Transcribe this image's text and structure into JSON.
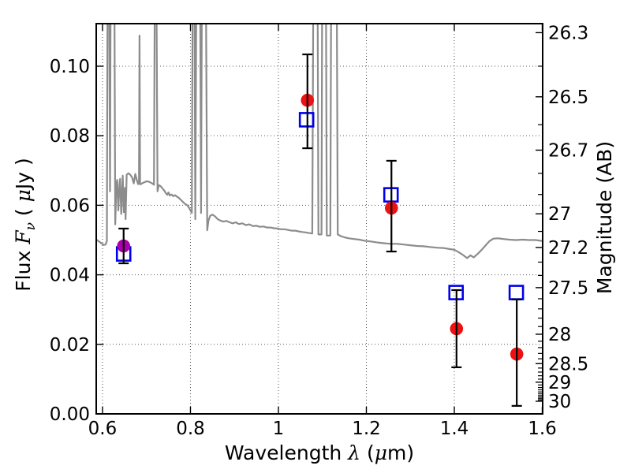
{
  "chart_data": {
    "type": "line+scatter-errorbar",
    "title": "",
    "xlabel": "Wavelength λ (μm)",
    "ylabel": "Flux Fν ( μJy )",
    "y2label": "Magnitude (AB)",
    "xlabel_rich": [
      {
        "t": "Wavelength  "
      },
      {
        "t": "λ",
        "i": 1
      },
      {
        "t": " ("
      },
      {
        "t": "μ",
        "i": 1
      },
      {
        "t": "m)"
      }
    ],
    "ylabel_rich": [
      {
        "t": "Flux  "
      },
      {
        "t": "F",
        "i": 1
      },
      {
        "t": "ν",
        "i": 1,
        "sub": 1
      },
      {
        "t": "  ( "
      },
      {
        "t": "μ",
        "i": 1
      },
      {
        "t": "Jy )"
      }
    ],
    "xlim": [
      0.5857,
      1.6009
    ],
    "ylim": [
      0,
      0.11224
    ],
    "grid": true,
    "legend": "none",
    "x_ticks": {
      "values": [
        0.6,
        0.8,
        1.0,
        1.2,
        1.4,
        1.6
      ],
      "labels": [
        "0.6",
        "0.8",
        "1",
        "1.2",
        "1.4",
        "1.6"
      ]
    },
    "y_ticks": {
      "values": [
        0,
        0.02,
        0.04,
        0.06,
        0.08,
        0.1
      ],
      "labels": [
        "0.00",
        "0.02",
        "0.04",
        "0.06",
        "0.08",
        "0.10"
      ]
    },
    "y2_ticks": {
      "mag_values": [
        26.3,
        26.5,
        26.7,
        27,
        27.2,
        27.5,
        28,
        28.5,
        29,
        30
      ],
      "labels": [
        "26.3",
        "26.5",
        "26.7",
        "27",
        "27.2",
        "27.5",
        "28",
        "28.5",
        "29",
        "30"
      ],
      "minor_step": 0.1,
      "minor_range": [
        26.3,
        30.0
      ],
      "ab_zeropoint_ujy": 23.9
    },
    "colors": {
      "spectrum": "#8c8c8c",
      "observed_point": "#ee1111",
      "observed_point_alt": "#aa00aa",
      "model_square": "#0000ee",
      "errorbar": "#000000",
      "grid": "#555555",
      "frame": "#000000"
    },
    "series": [
      {
        "name": "model-spectrum",
        "type": "line",
        "color": "#8c8c8c",
        "width": 2.2,
        "points": [
          [
            0.586,
            0.0501
          ],
          [
            0.592,
            0.0496
          ],
          [
            0.598,
            0.049
          ],
          [
            0.603,
            0.0486
          ],
          [
            0.607,
            0.0487
          ],
          [
            0.61,
            0.0497
          ],
          [
            0.6115,
            0.125
          ],
          [
            0.615,
            0.125
          ],
          [
            0.617,
            0.064
          ],
          [
            0.6185,
            0.125
          ],
          [
            0.627,
            0.125
          ],
          [
            0.629,
            0.0545
          ],
          [
            0.6315,
            0.066
          ],
          [
            0.6335,
            0.0673
          ],
          [
            0.636,
            0.0585
          ],
          [
            0.6385,
            0.0655
          ],
          [
            0.64,
            0.0676
          ],
          [
            0.6425,
            0.0575
          ],
          [
            0.646,
            0.0685
          ],
          [
            0.6485,
            0.058
          ],
          [
            0.651,
            0.065
          ],
          [
            0.6525,
            0.056
          ],
          [
            0.655,
            0.0688
          ],
          [
            0.659,
            0.0692
          ],
          [
            0.663,
            0.0688
          ],
          [
            0.667,
            0.0681
          ],
          [
            0.671,
            0.0663
          ],
          [
            0.6745,
            0.069
          ],
          [
            0.678,
            0.0672
          ],
          [
            0.681,
            0.0661
          ],
          [
            0.683,
            0.0665
          ],
          [
            0.6842,
            0.1088
          ],
          [
            0.6855,
            0.066
          ],
          [
            0.69,
            0.0663
          ],
          [
            0.695,
            0.0666
          ],
          [
            0.7,
            0.0669
          ],
          [
            0.705,
            0.0668
          ],
          [
            0.71,
            0.0665
          ],
          [
            0.714,
            0.0662
          ],
          [
            0.717,
            0.0659
          ],
          [
            0.719,
            0.125
          ],
          [
            0.7225,
            0.125
          ],
          [
            0.725,
            0.064
          ],
          [
            0.728,
            0.0658
          ],
          [
            0.732,
            0.0655
          ],
          [
            0.736,
            0.0649
          ],
          [
            0.74,
            0.0643
          ],
          [
            0.744,
            0.0635
          ],
          [
            0.7475,
            0.063
          ],
          [
            0.75,
            0.0637
          ],
          [
            0.753,
            0.0628
          ],
          [
            0.757,
            0.0631
          ],
          [
            0.761,
            0.0626
          ],
          [
            0.765,
            0.0629
          ],
          [
            0.769,
            0.0625
          ],
          [
            0.773,
            0.0622
          ],
          [
            0.777,
            0.0617
          ],
          [
            0.781,
            0.0612
          ],
          [
            0.785,
            0.0607
          ],
          [
            0.789,
            0.0603
          ],
          [
            0.793,
            0.06
          ],
          [
            0.797,
            0.0592
          ],
          [
            0.8,
            0.0585
          ],
          [
            0.803,
            0.0578
          ],
          [
            0.805,
            0.125
          ],
          [
            0.809,
            0.125
          ],
          [
            0.811,
            0.056
          ],
          [
            0.8135,
            0.125
          ],
          [
            0.822,
            0.125
          ],
          [
            0.824,
            0.0578
          ],
          [
            0.826,
            0.125
          ],
          [
            0.835,
            0.125
          ],
          [
            0.838,
            0.0528
          ],
          [
            0.841,
            0.0556
          ],
          [
            0.845,
            0.057
          ],
          [
            0.85,
            0.0573
          ],
          [
            0.856,
            0.0568
          ],
          [
            0.862,
            0.056
          ],
          [
            0.868,
            0.0556
          ],
          [
            0.875,
            0.0553
          ],
          [
            0.882,
            0.0555
          ],
          [
            0.889,
            0.0551
          ],
          [
            0.896,
            0.0548
          ],
          [
            0.903,
            0.0551
          ],
          [
            0.91,
            0.0546
          ],
          [
            0.918,
            0.0548
          ],
          [
            0.926,
            0.0543
          ],
          [
            0.934,
            0.0545
          ],
          [
            0.942,
            0.054
          ],
          [
            0.95,
            0.0541
          ],
          [
            0.958,
            0.0538
          ],
          [
            0.966,
            0.0539
          ],
          [
            0.974,
            0.0536
          ],
          [
            0.982,
            0.0536
          ],
          [
            0.99,
            0.0534
          ],
          [
            0.998,
            0.0533
          ],
          [
            1.006,
            0.0531
          ],
          [
            1.014,
            0.0531
          ],
          [
            1.022,
            0.0529
          ],
          [
            1.03,
            0.0527
          ],
          [
            1.038,
            0.0527
          ],
          [
            1.046,
            0.0525
          ],
          [
            1.054,
            0.0523
          ],
          [
            1.062,
            0.0522
          ],
          [
            1.07,
            0.052
          ],
          [
            1.077,
            0.0519
          ],
          [
            1.0795,
            0.125
          ],
          [
            1.089,
            0.125
          ],
          [
            1.091,
            0.0516
          ],
          [
            1.098,
            0.0516
          ],
          [
            1.0995,
            0.125
          ],
          [
            1.108,
            0.125
          ],
          [
            1.11,
            0.0513
          ],
          [
            1.118,
            0.0513
          ],
          [
            1.12,
            0.125
          ],
          [
            1.1325,
            0.125
          ],
          [
            1.135,
            0.0516
          ],
          [
            1.142,
            0.0511
          ],
          [
            1.15,
            0.0508
          ],
          [
            1.16,
            0.0505
          ],
          [
            1.172,
            0.0503
          ],
          [
            1.184,
            0.0501
          ],
          [
            1.196,
            0.0498
          ],
          [
            1.21,
            0.0496
          ],
          [
            1.225,
            0.0493
          ],
          [
            1.24,
            0.0491
          ],
          [
            1.255,
            0.0489
          ],
          [
            1.27,
            0.0489
          ],
          [
            1.285,
            0.0487
          ],
          [
            1.3,
            0.0485
          ],
          [
            1.315,
            0.0483
          ],
          [
            1.33,
            0.0482
          ],
          [
            1.345,
            0.048
          ],
          [
            1.36,
            0.0478
          ],
          [
            1.375,
            0.0477
          ],
          [
            1.39,
            0.0474
          ],
          [
            1.4,
            0.0472
          ],
          [
            1.41,
            0.0465
          ],
          [
            1.42,
            0.0457
          ],
          [
            1.429,
            0.0448
          ],
          [
            1.437,
            0.0456
          ],
          [
            1.444,
            0.045
          ],
          [
            1.452,
            0.0459
          ],
          [
            1.461,
            0.047
          ],
          [
            1.47,
            0.0483
          ],
          [
            1.48,
            0.0497
          ],
          [
            1.489,
            0.0504
          ],
          [
            1.5,
            0.0505
          ],
          [
            1.512,
            0.0503
          ],
          [
            1.525,
            0.0501
          ],
          [
            1.54,
            0.05
          ],
          [
            1.555,
            0.0501
          ],
          [
            1.57,
            0.05
          ],
          [
            1.585,
            0.05
          ],
          [
            1.601,
            0.0497
          ]
        ]
      },
      {
        "name": "observed-photometry",
        "type": "scatter-errorbar",
        "marker": "filled-circle",
        "marker_radius": 8.3,
        "points": [
          {
            "x": 0.648,
            "y": 0.0483,
            "y_lo": 0.0433,
            "y_hi": 0.0533,
            "color": "#aa00aa"
          },
          {
            "x": 1.066,
            "y": 0.0902,
            "y_lo": 0.0764,
            "y_hi": 0.1034,
            "color": "#ee1111"
          },
          {
            "x": 1.257,
            "y": 0.0592,
            "y_lo": 0.0467,
            "y_hi": 0.0728,
            "color": "#ee1111"
          },
          {
            "x": 1.405,
            "y": 0.0245,
            "y_lo": 0.0134,
            "y_hi": 0.0356,
            "color": "#ee1111"
          },
          {
            "x": 1.542,
            "y": 0.0172,
            "y_lo": 0.0023,
            "y_hi": 0.0329,
            "color": "#ee1111"
          }
        ]
      },
      {
        "name": "model-photometry",
        "type": "scatter",
        "marker": "open-square",
        "marker_size": 17,
        "color": "#0000ee",
        "points": [
          [
            0.648,
            0.046
          ],
          [
            1.064,
            0.0846
          ],
          [
            1.256,
            0.063
          ],
          [
            1.404,
            0.0349
          ],
          [
            1.541,
            0.0349
          ]
        ]
      }
    ]
  }
}
